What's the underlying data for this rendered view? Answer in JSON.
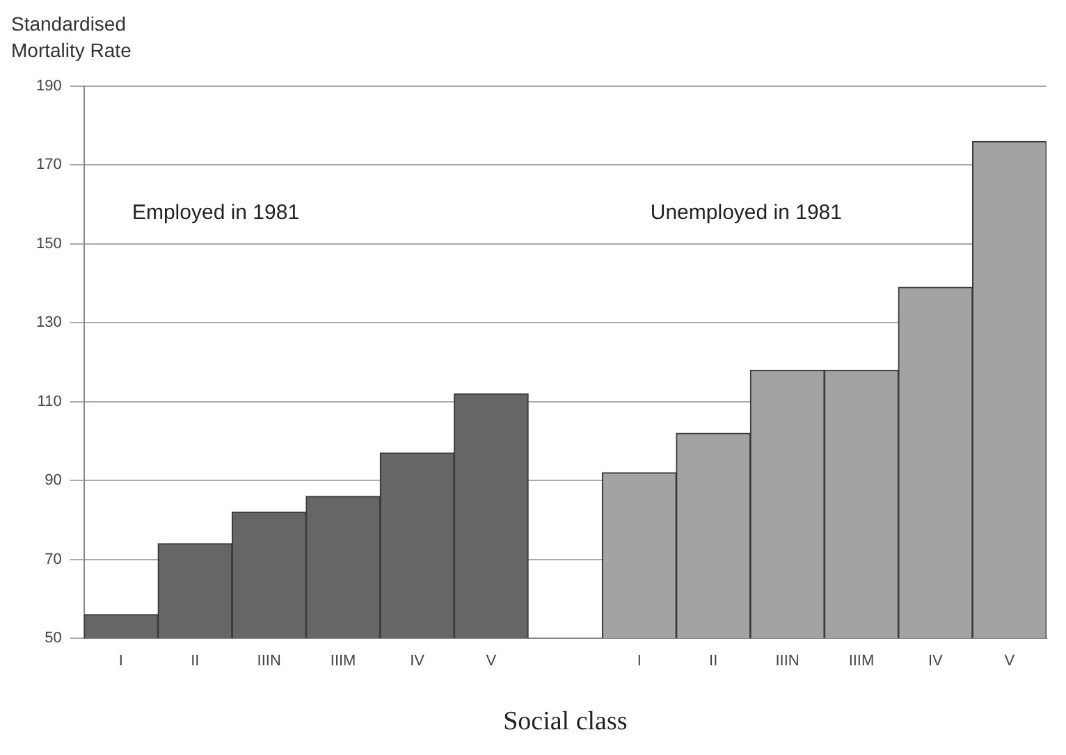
{
  "chart_data": {
    "type": "bar",
    "ylabel": "Standardised\nMortality Rate",
    "xlabel": "Social class",
    "categories": [
      "I",
      "II",
      "IIIN",
      "IIIM",
      "IV",
      "V",
      null,
      "I",
      "II",
      "IIIN",
      "IIIM",
      "IV",
      "V"
    ],
    "series": [
      {
        "color": "#666666",
        "values": [
          56,
          74,
          82,
          86,
          97,
          112,
          null,
          null,
          null,
          null,
          null,
          null,
          null
        ]
      },
      {
        "color": "#a3a3a3",
        "values": [
          null,
          null,
          null,
          null,
          null,
          null,
          null,
          92,
          102,
          118,
          118,
          139,
          176
        ]
      }
    ],
    "ylim": [
      50,
      190
    ],
    "yticks": [
      50,
      70,
      90,
      110,
      130,
      150,
      170,
      190
    ],
    "annotations": [
      "Employed in 1981",
      "Unemployed in 1981"
    ],
    "grid": "y",
    "legend": false
  }
}
